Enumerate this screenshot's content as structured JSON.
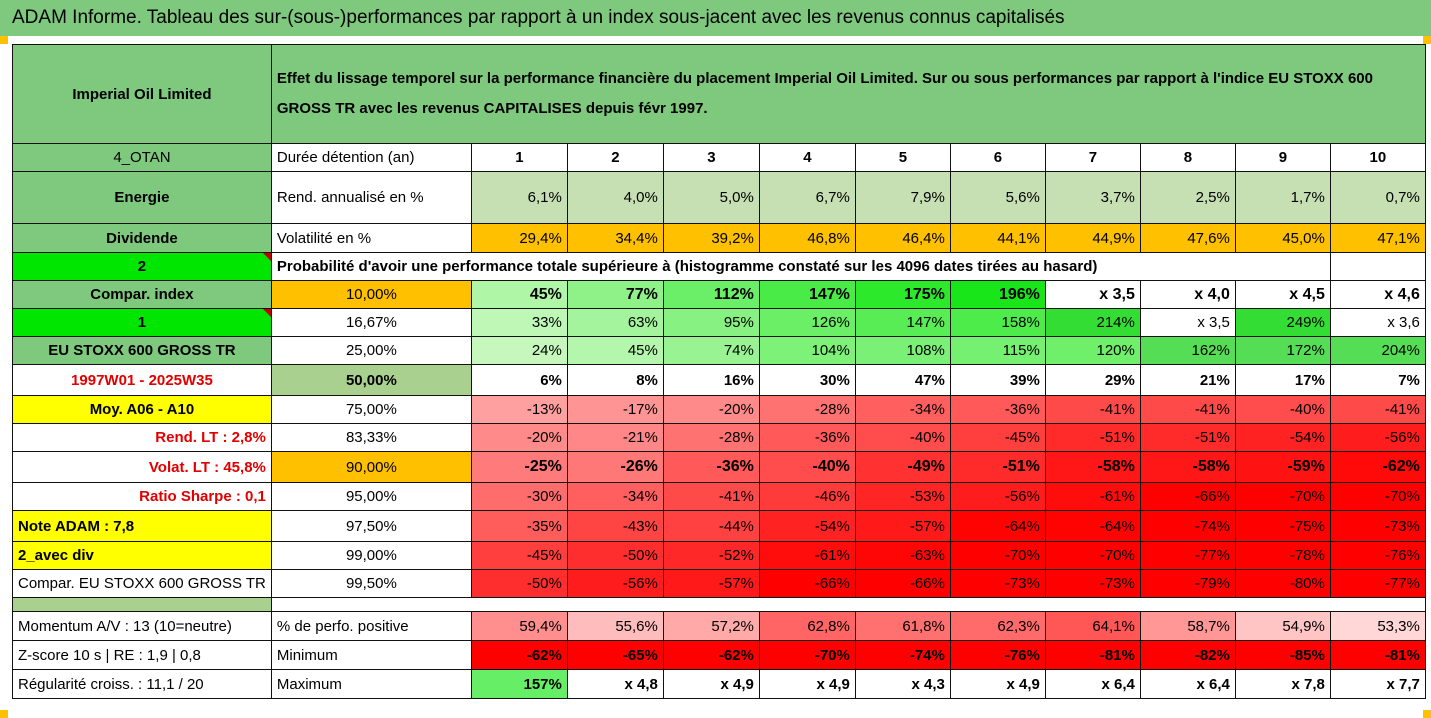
{
  "banner": "ADAM Informe. Tableau des sur-(sous-)performances par rapport à un index sous-jacent avec les revenus connus capitalisés",
  "company": "Imperial Oil Limited",
  "description": "Effet du lissage temporel sur la performance financière du placement Imperial Oil Limited. Sur ou sous performances par rapport à l'indice EU STOXX 600 GROSS TR avec les revenus CAPITALISES depuis févr 1997.",
  "left": {
    "code": "4_OTAN",
    "sector": "Energie",
    "dividend": "Dividende",
    "n2": "2",
    "compar_index": "Compar. index",
    "n1": "1",
    "index_name": "EU STOXX 600 GROSS TR",
    "period": "1997W01 - 2025W35",
    "moy": "Moy. A06 - A10",
    "rend_lt": "Rend. LT :   2,8%",
    "volat_lt": "Volat. LT :   45,8%",
    "sharpe": "Ratio Sharpe :   0,1",
    "note": "Note ADAM : 7,8",
    "avec_div": "2_avec div",
    "compar_full": "Compar. EU STOXX 600 GROSS TR",
    "momentum": "Momentum A/V : 13 (10=neutre)",
    "zscore": "Z-score 10 s  | RE : 1,9 | 0,8",
    "regularite": "Régularité croiss. : 11,1 / 20"
  },
  "header_row": {
    "label": "Durée détention (an)",
    "years": [
      "1",
      "2",
      "3",
      "4",
      "5",
      "6",
      "7",
      "8",
      "9",
      "10"
    ]
  },
  "rend_row": {
    "label": "Rend. annualisé en %",
    "values": [
      "6,1%",
      "4,0%",
      "5,0%",
      "6,7%",
      "7,9%",
      "5,6%",
      "3,7%",
      "2,5%",
      "1,7%",
      "0,7%"
    ]
  },
  "vol_row": {
    "label": "Volatilité en %",
    "values": [
      "29,4%",
      "34,4%",
      "39,2%",
      "46,8%",
      "46,4%",
      "44,1%",
      "44,9%",
      "47,6%",
      "45,0%",
      "47,1%"
    ]
  },
  "prob_title": "Probabilité d'avoir une performance totale supérieure à (histogramme constaté sur les 4096 dates tirées au hasard)",
  "quantiles": [
    {
      "p": "10,00%",
      "values": [
        "45%",
        "77%",
        "112%",
        "147%",
        "175%",
        "196%",
        "x 3,5",
        "x 4,0",
        "x 4,5",
        "x 4,6"
      ]
    },
    {
      "p": "16,67%",
      "values": [
        "33%",
        "63%",
        "95%",
        "126%",
        "147%",
        "158%",
        "214%",
        "x 3,5",
        "249%",
        "x 3,6"
      ]
    },
    {
      "p": "25,00%",
      "values": [
        "24%",
        "45%",
        "74%",
        "104%",
        "108%",
        "115%",
        "120%",
        "162%",
        "172%",
        "204%"
      ]
    },
    {
      "p": "50,00%",
      "values": [
        "6%",
        "8%",
        "16%",
        "30%",
        "47%",
        "39%",
        "29%",
        "21%",
        "17%",
        "7%"
      ]
    },
    {
      "p": "75,00%",
      "values": [
        "-13%",
        "-17%",
        "-20%",
        "-28%",
        "-34%",
        "-36%",
        "-41%",
        "-41%",
        "-40%",
        "-41%"
      ]
    },
    {
      "p": "83,33%",
      "values": [
        "-20%",
        "-21%",
        "-28%",
        "-36%",
        "-40%",
        "-45%",
        "-51%",
        "-51%",
        "-54%",
        "-56%"
      ]
    },
    {
      "p": "90,00%",
      "values": [
        "-25%",
        "-26%",
        "-36%",
        "-40%",
        "-49%",
        "-51%",
        "-58%",
        "-58%",
        "-59%",
        "-62%"
      ]
    },
    {
      "p": "95,00%",
      "values": [
        "-30%",
        "-34%",
        "-41%",
        "-46%",
        "-53%",
        "-56%",
        "-61%",
        "-66%",
        "-70%",
        "-70%"
      ]
    },
    {
      "p": "97,50%",
      "values": [
        "-35%",
        "-43%",
        "-44%",
        "-54%",
        "-57%",
        "-64%",
        "-64%",
        "-74%",
        "-75%",
        "-73%"
      ]
    },
    {
      "p": "99,00%",
      "values": [
        "-45%",
        "-50%",
        "-52%",
        "-61%",
        "-63%",
        "-70%",
        "-70%",
        "-77%",
        "-78%",
        "-76%"
      ]
    },
    {
      "p": "99,50%",
      "values": [
        "-50%",
        "-56%",
        "-57%",
        "-66%",
        "-66%",
        "-73%",
        "-73%",
        "-79%",
        "-80%",
        "-77%"
      ]
    }
  ],
  "pos_row": {
    "label": "% de perfo. positive",
    "values": [
      "59,4%",
      "55,6%",
      "57,2%",
      "62,8%",
      "61,8%",
      "62,3%",
      "64,1%",
      "58,7%",
      "54,9%",
      "53,3%"
    ]
  },
  "min_row": {
    "label": "Minimum",
    "values": [
      "-62%",
      "-65%",
      "-62%",
      "-70%",
      "-74%",
      "-76%",
      "-81%",
      "-82%",
      "-85%",
      "-81%"
    ]
  },
  "max_row": {
    "label": "Maximum",
    "values": [
      "157%",
      "x 4,8",
      "x 4,9",
      "x 4,9",
      "x 4,3",
      "x 4,9",
      "x 6,4",
      "x 6,4",
      "x 7,8",
      "x 7,7"
    ]
  },
  "colors": {
    "green_header": "#7fc97f",
    "light_green": "#c6e0b4",
    "orange": "#ffc000",
    "yellow": "#ffff00",
    "bright_green": "#00e600",
    "red": "#ff0000"
  }
}
